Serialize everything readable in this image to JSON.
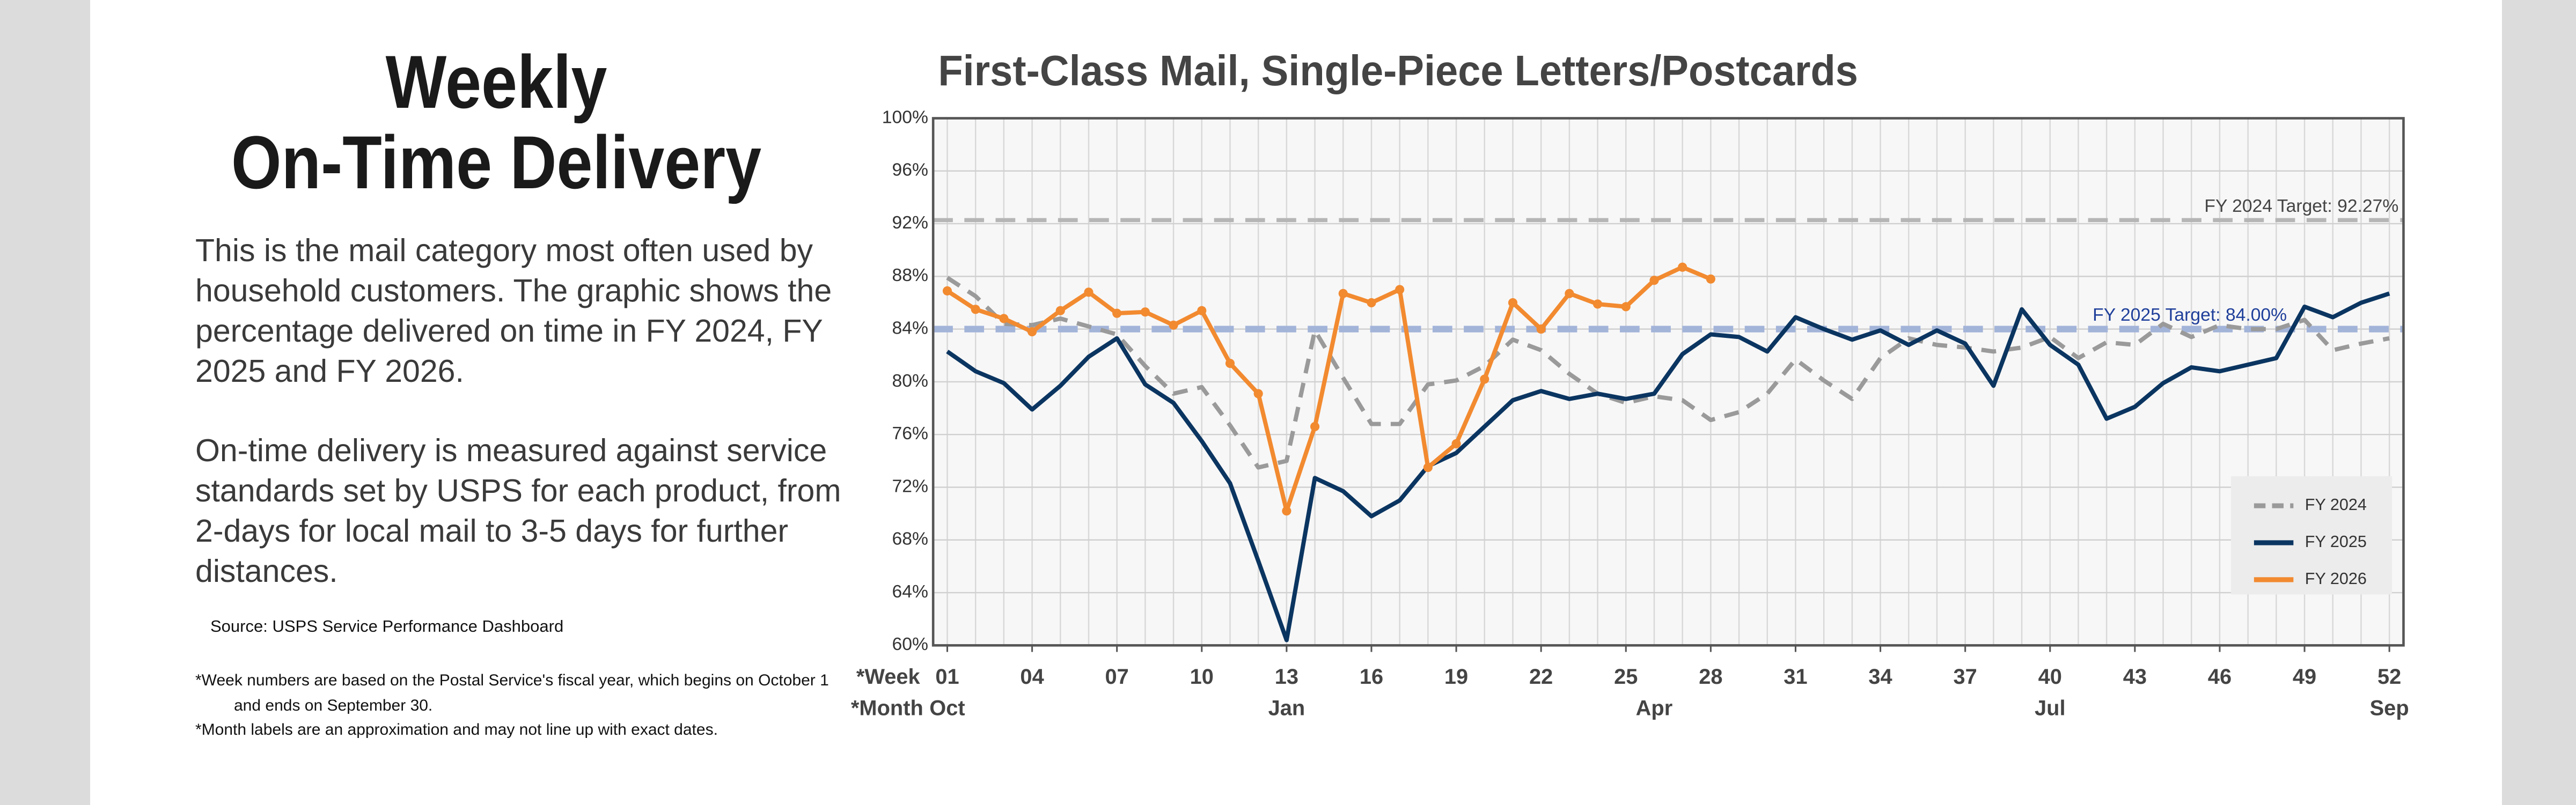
{
  "header": {
    "title_lines": [
      "Weekly",
      "On-Time Delivery"
    ],
    "paragraphs": [
      "This is the mail category most often used by household customers. The graphic shows the percentage delivered on time in FY 2024, FY 2025 and FY 2026.",
      "On-time delivery is measured against service standards set by USPS for each product, from 2-days for local mail to 3-5 days for further distances."
    ],
    "source": "Source: USPS Service Performance Dashboard",
    "footnotes": [
      "*Week numbers are based on the Postal Service's fiscal year, which begins on October 1 and ends on September 30.",
      "*Month labels are an approximation and may not line up with exact dates."
    ]
  },
  "chart_data": {
    "type": "line",
    "title": "First-Class Mail, Single-Piece Letters/Postcards",
    "x": [
      1,
      2,
      3,
      4,
      5,
      6,
      7,
      8,
      9,
      10,
      11,
      12,
      13,
      14,
      15,
      16,
      17,
      18,
      19,
      20,
      21,
      22,
      23,
      24,
      25,
      26,
      27,
      28,
      29,
      30,
      31,
      32,
      33,
      34,
      35,
      36,
      37,
      38,
      39,
      40,
      41,
      42,
      43,
      44,
      45,
      46,
      47,
      48,
      49,
      50,
      51,
      52
    ],
    "xlim": [
      0.5,
      52.5
    ],
    "xticks": [
      {
        "value": 1,
        "label": "01"
      },
      {
        "value": 4,
        "label": "04"
      },
      {
        "value": 7,
        "label": "07"
      },
      10,
      13,
      16,
      19,
      22,
      25,
      28,
      31,
      34,
      37,
      40,
      43,
      46,
      49,
      52
    ],
    "x_row_label": "*Week",
    "month_row_label": "*Month",
    "month_labels": [
      {
        "value": 1,
        "label": "Oct"
      },
      {
        "value": 13,
        "label": "Jan"
      },
      {
        "value": 26,
        "label": "Apr"
      },
      {
        "value": 40,
        "label": "Jul"
      },
      {
        "value": 52,
        "label": "Sep"
      }
    ],
    "ylim": [
      60,
      100
    ],
    "yticks": [
      {
        "value": 60,
        "label": "60%"
      },
      {
        "value": 64,
        "label": "64%"
      },
      {
        "value": 68,
        "label": "68%"
      },
      {
        "value": 72,
        "label": "72%"
      },
      {
        "value": 76,
        "label": "76%"
      },
      {
        "value": 80,
        "label": "80%"
      },
      {
        "value": 84,
        "label": "84%"
      },
      {
        "value": 88,
        "label": "88%"
      },
      {
        "value": 92,
        "label": "92%"
      },
      {
        "value": 96,
        "label": "96%"
      },
      {
        "value": 100,
        "label": "100%"
      }
    ],
    "grid": true,
    "reference_lines": [
      {
        "label": "FY 2024 Target: 92.27%",
        "value": 92.27,
        "color": "#b5b5b5",
        "label_color": "#444444"
      },
      {
        "label": "FY 2025 Target: 84.00%",
        "value": 84.0,
        "color": "#a3b4d9",
        "label_color": "#1f3f9a"
      }
    ],
    "legend": "lower right",
    "series": [
      {
        "name": "FY 2024",
        "color": "#9a9a9a",
        "dashed": true,
        "markers": false,
        "values": [
          87.9,
          86.5,
          84.4,
          84.3,
          84.8,
          84.2,
          83.6,
          81.2,
          79.1,
          79.6,
          76.7,
          73.5,
          74.0,
          83.9,
          80.3,
          76.8,
          76.8,
          79.8,
          80.1,
          81.2,
          83.2,
          82.4,
          80.6,
          79.1,
          78.4,
          78.9,
          78.6,
          77.1,
          77.7,
          79.1,
          81.7,
          80.1,
          78.7,
          81.8,
          83.3,
          82.8,
          82.6,
          82.3,
          82.6,
          83.4,
          81.8,
          83.0,
          82.8,
          84.4,
          83.4,
          84.3,
          84.0,
          84.0,
          84.7,
          82.4,
          82.9,
          83.3
        ]
      },
      {
        "name": "FY 2025",
        "color": "#0b3561",
        "dashed": false,
        "markers": false,
        "values": [
          82.3,
          80.8,
          79.9,
          77.9,
          79.7,
          81.9,
          83.3,
          79.8,
          78.4,
          75.5,
          72.3,
          66.4,
          60.4,
          72.7,
          71.7,
          69.8,
          71.0,
          73.6,
          74.6,
          76.6,
          78.6,
          79.3,
          78.7,
          79.1,
          78.7,
          79.1,
          82.1,
          83.6,
          83.4,
          82.3,
          84.9,
          84.0,
          83.2,
          83.9,
          82.8,
          83.9,
          82.9,
          79.7,
          85.5,
          82.8,
          81.3,
          77.2,
          78.1,
          79.9,
          81.1,
          80.8,
          81.3,
          81.8,
          85.7,
          84.9,
          86.0,
          86.7
        ]
      },
      {
        "name": "FY 2026",
        "color": "#f28a30",
        "dashed": false,
        "markers": true,
        "values": [
          86.9,
          85.5,
          84.8,
          83.8,
          85.4,
          86.8,
          85.2,
          85.3,
          84.3,
          85.4,
          81.4,
          79.1,
          70.2,
          76.6,
          86.7,
          86.0,
          87.0,
          73.5,
          75.3,
          80.2,
          86.0,
          84.0,
          86.7,
          85.9,
          85.7,
          87.7,
          88.7,
          87.8,
          null,
          null,
          null,
          null,
          null,
          null,
          null,
          null,
          null,
          null,
          null,
          null,
          null,
          null,
          null,
          null,
          null,
          null,
          null,
          null,
          null,
          null,
          null,
          null
        ]
      }
    ]
  }
}
